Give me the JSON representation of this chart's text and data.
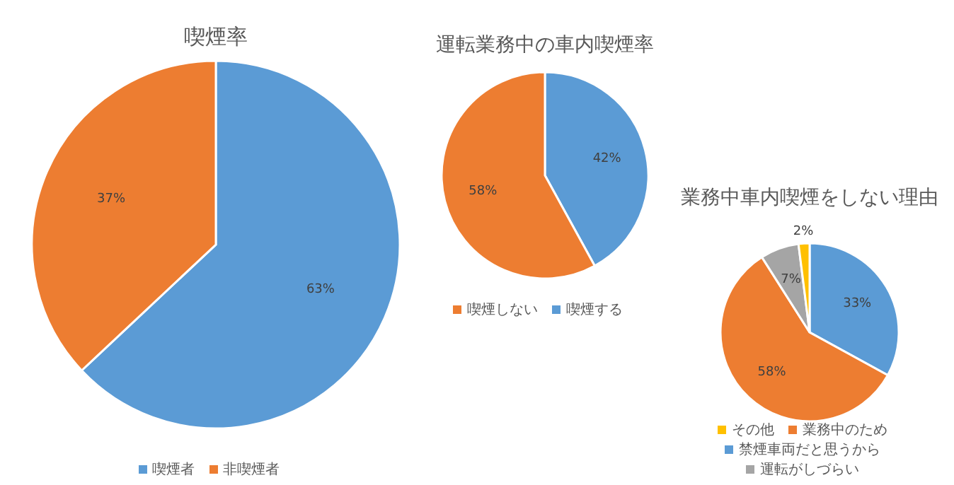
{
  "chart_data": [
    {
      "type": "pie",
      "title": "喫煙率",
      "categories": [
        "喫煙者",
        "非喫煙者"
      ],
      "values": [
        63,
        37
      ],
      "colors": [
        "#5b9bd5",
        "#ed7d31"
      ],
      "value_labels": [
        "63%",
        "37%"
      ],
      "legend": "bottom"
    },
    {
      "type": "pie",
      "title": "運転業務中の車内喫煙率",
      "categories": [
        "喫煙する",
        "喫煙しない"
      ],
      "values": [
        42,
        58
      ],
      "colors": [
        "#5b9bd5",
        "#ed7d31"
      ],
      "value_labels": [
        "42%",
        "58%"
      ],
      "legend": "bottom"
    },
    {
      "type": "pie",
      "title": "業務中車内喫煙をしない理由",
      "categories": [
        "禁煙車両だと思うから",
        "業務中のため",
        "運転がしづらい",
        "その他"
      ],
      "values": [
        33,
        58,
        7,
        2
      ],
      "colors": [
        "#5b9bd5",
        "#ed7d31",
        "#a5a5a5",
        "#ffc000"
      ],
      "value_labels": [
        "33%",
        "58%",
        "7%",
        "2%"
      ],
      "legend": "bottom"
    }
  ]
}
